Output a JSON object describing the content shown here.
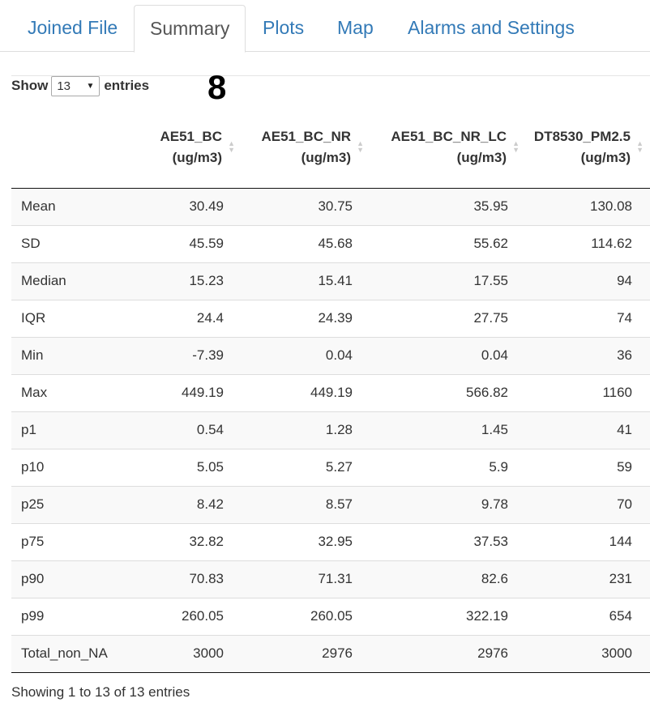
{
  "tabs": [
    {
      "label": "Joined File",
      "active": false
    },
    {
      "label": "Summary",
      "active": true
    },
    {
      "label": "Plots",
      "active": false
    },
    {
      "label": "Map",
      "active": false
    },
    {
      "label": "Alarms and Settings",
      "active": false
    }
  ],
  "length_control": {
    "prefix": "Show",
    "selected": "13",
    "suffix": "entries"
  },
  "big_number": "8",
  "table": {
    "columns": [
      {
        "line1": "",
        "line2": ""
      },
      {
        "line1": "AE51_BC",
        "line2": "(ug/m3)"
      },
      {
        "line1": "AE51_BC_NR",
        "line2": "(ug/m3)"
      },
      {
        "line1": "AE51_BC_NR_LC",
        "line2": "(ug/m3)"
      },
      {
        "line1": "DT8530_PM2.5",
        "line2": "(ug/m3)"
      }
    ],
    "rows": [
      {
        "name": "Mean",
        "values": [
          "30.49",
          "30.75",
          "35.95",
          "130.08"
        ]
      },
      {
        "name": "SD",
        "values": [
          "45.59",
          "45.68",
          "55.62",
          "114.62"
        ]
      },
      {
        "name": "Median",
        "values": [
          "15.23",
          "15.41",
          "17.55",
          "94"
        ]
      },
      {
        "name": "IQR",
        "values": [
          "24.4",
          "24.39",
          "27.75",
          "74"
        ]
      },
      {
        "name": "Min",
        "values": [
          "-7.39",
          "0.04",
          "0.04",
          "36"
        ]
      },
      {
        "name": "Max",
        "values": [
          "449.19",
          "449.19",
          "566.82",
          "1160"
        ]
      },
      {
        "name": "p1",
        "values": [
          "0.54",
          "1.28",
          "1.45",
          "41"
        ]
      },
      {
        "name": "p10",
        "values": [
          "5.05",
          "5.27",
          "5.9",
          "59"
        ]
      },
      {
        "name": "p25",
        "values": [
          "8.42",
          "8.57",
          "9.78",
          "70"
        ]
      },
      {
        "name": "p75",
        "values": [
          "32.82",
          "32.95",
          "37.53",
          "144"
        ]
      },
      {
        "name": "p90",
        "values": [
          "70.83",
          "71.31",
          "82.6",
          "231"
        ]
      },
      {
        "name": "p99",
        "values": [
          "260.05",
          "260.05",
          "322.19",
          "654"
        ]
      },
      {
        "name": "Total_non_NA",
        "values": [
          "3000",
          "2976",
          "2976",
          "3000"
        ]
      }
    ]
  },
  "info_text": "Showing 1 to 13 of 13 entries",
  "colors": {
    "tab_link": "#337ab7",
    "tab_active": "#555555",
    "stripe": "#f9f9f9"
  },
  "icons": {
    "sort": "sort-both-icon",
    "dropdown": "chevron-down-icon"
  }
}
